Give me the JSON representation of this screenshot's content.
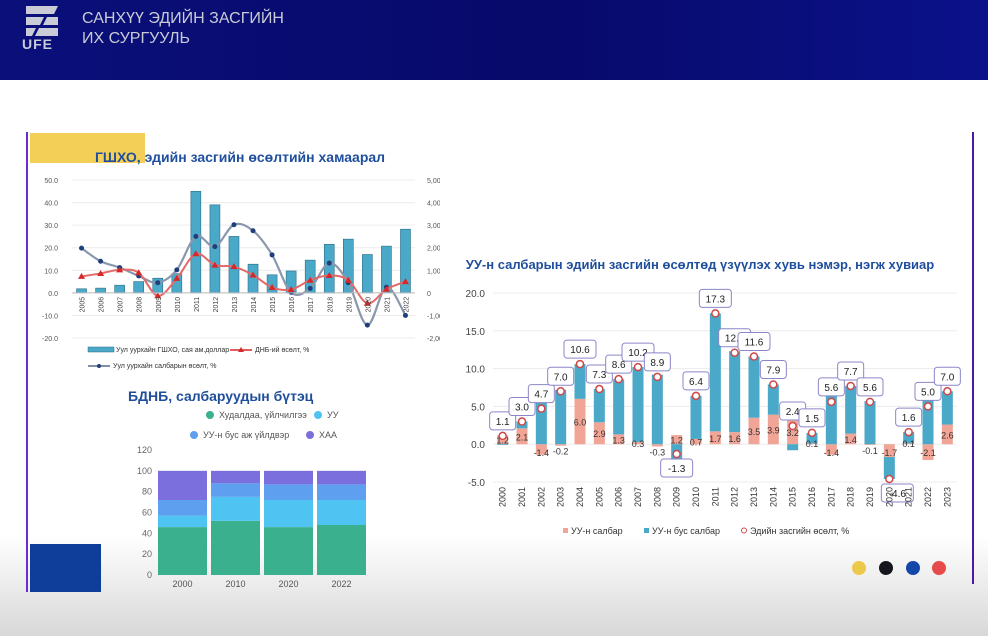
{
  "header": {
    "logo_text": "UFE",
    "university_line1": "САНХҮҮ ЭДИЙН ЗАСГИЙН",
    "university_line2": "ИХ СУРГУУЛЬ"
  },
  "colors": {
    "header_bg": "#0a0f7a",
    "title_blue": "#1f4e9c",
    "bar_teal": "#4aa8c8",
    "line_red": "#d62828",
    "line_navy": "#1f3f7a",
    "pink": "#f0a596",
    "green": "#3bb08f",
    "sky": "#4fc3f2",
    "lightblue": "#5e9ff0",
    "purple": "#7b6fde"
  },
  "footer_dots": [
    "#ecc94b",
    "#16161e",
    "#1448a8",
    "#e64a4a"
  ],
  "chart_data": [
    {
      "type": "bar",
      "title": "ГШХО, эдийн засгийн өсөлтийн хамаарал",
      "categories": [
        "2005",
        "2006",
        "2007",
        "2008",
        "2009",
        "2010",
        "2011",
        "2012",
        "2013",
        "2014",
        "2015",
        "2016",
        "2017",
        "2018",
        "2019",
        "2020",
        "2021",
        "2022"
      ],
      "ylim_left": [
        -20,
        50
      ],
      "ylim_right": [
        -2000,
        5000
      ],
      "left_ticks": [
        "50.0",
        "40.0",
        "30.0",
        "20.0",
        "10.0",
        "0.0",
        "-10.0",
        "-20.0"
      ],
      "right_ticks": [
        "5,000",
        "4,000",
        "3,000",
        "2,000",
        "1,000",
        "0",
        "-1,000",
        "-2,000"
      ],
      "series": [
        {
          "name": "Уул уурхайн ГШХО, сая ам.доллар",
          "kind": "bar",
          "axis": "right",
          "values": [
            180,
            210,
            340,
            500,
            650,
            850,
            4500,
            3900,
            2500,
            1270,
            800,
            970,
            1450,
            2150,
            2380,
            1700,
            2070,
            2820
          ]
        },
        {
          "name": "ДНБ-ий өсөлт, %",
          "kind": "line",
          "axis": "left",
          "values": [
            7.3,
            8.6,
            10.2,
            8.9,
            -1.3,
            6.4,
            17.3,
            12.3,
            11.6,
            7.9,
            2.4,
            1.5,
            5.6,
            7.7,
            5.6,
            -4.6,
            1.6,
            5.0
          ]
        },
        {
          "name": "Уул уурхайн салбарын өсөлт, %",
          "kind": "line",
          "axis": "left",
          "values": [
            19.8,
            14.0,
            11.2,
            7.5,
            4.5,
            10.2,
            25.0,
            20.5,
            30.2,
            27.5,
            16.8,
            0.2,
            2.0,
            13.2,
            4.5,
            -14.3,
            2.5,
            -10.0
          ]
        }
      ],
      "legend": "bottom"
    },
    {
      "type": "bar",
      "stacked": true,
      "title": "БДНБ, салбаруудын бүтэц",
      "categories": [
        "2000",
        "2010",
        "2020",
        "2022"
      ],
      "ylim": [
        0,
        120
      ],
      "ticks": [
        "120",
        "100",
        "80",
        "60",
        "40",
        "20",
        "0"
      ],
      "series": [
        {
          "name": "Худалдаа, үйлчилгээ",
          "values": [
            46,
            52,
            46,
            48
          ]
        },
        {
          "name": "УУ",
          "values": [
            11,
            23,
            26,
            24
          ]
        },
        {
          "name": "УУ-н бус аж үйлдвэр",
          "values": [
            15,
            13,
            15,
            15
          ]
        },
        {
          "name": "ХАА",
          "values": [
            28,
            12,
            13,
            13
          ]
        }
      ],
      "legend": "top"
    },
    {
      "type": "bar",
      "stacked": true,
      "title": "УУ-н салбарын эдийн засгийн өсөлтөд үзүүлэх хувь нэмэр, нэгж хувиар",
      "categories": [
        "2000",
        "2001",
        "2002",
        "2003",
        "2004",
        "2005",
        "2006",
        "2007",
        "2008",
        "2009",
        "2010",
        "2011",
        "2012",
        "2013",
        "2014",
        "2015",
        "2016",
        "2017",
        "2018",
        "2019",
        "2020",
        "2021",
        "2022",
        "2023"
      ],
      "ylim": [
        -5,
        20
      ],
      "ticks": [
        "20.0",
        "15.0",
        "10.0",
        "5.0",
        "0.0",
        "-5.0"
      ],
      "series": [
        {
          "name": "УУ-н салбар",
          "values": [
            1.2,
            2.1,
            -1.4,
            -0.2,
            6.0,
            2.9,
            1.3,
            0.3,
            -0.3,
            1.2,
            0.7,
            1.7,
            1.6,
            3.5,
            3.9,
            3.2,
            0.1,
            -1.4,
            1.4,
            -0.1,
            -1.7,
            0.1,
            -2.1,
            2.6
          ]
        },
        {
          "name": "УУ-н бус салбар",
          "values": [
            -0.1,
            0.9,
            6.1,
            7.2,
            4.6,
            4.4,
            7.3,
            9.9,
            9.2,
            -2.5,
            5.7,
            15.6,
            10.7,
            8.1,
            4.0,
            -0.8,
            1.4,
            7.0,
            6.3,
            5.7,
            -2.9,
            1.5,
            7.1,
            4.4
          ]
        },
        {
          "name": "Эдийн засгийн өсөлт, %",
          "kind": "marker",
          "values": [
            1.1,
            3.0,
            4.7,
            7.0,
            10.6,
            7.3,
            8.6,
            10.2,
            8.9,
            -1.3,
            6.4,
            17.3,
            12.1,
            11.6,
            7.9,
            2.4,
            1.5,
            5.6,
            7.7,
            5.6,
            -4.6,
            1.6,
            5.0,
            7.0
          ]
        }
      ],
      "mining_labels": [
        "1.2",
        "2.1",
        "-1.4",
        "-0.2",
        "6.0",
        "2.9",
        "1.3",
        "0.3",
        "-0.3",
        "1.2",
        "0.7",
        "1.7",
        "1.6",
        "3.5",
        "3.9",
        "3.2",
        "0.1",
        "-1.4",
        "1.4",
        "-0.1",
        "-1.7",
        "0.1",
        "-2.1",
        "2.6"
      ],
      "growth_labels": [
        "1.1",
        "3.0",
        "4.7",
        "7.0",
        "10.6",
        "7.3",
        "8.6",
        "10.2",
        "8.9",
        "-1.3",
        "6.4",
        "17.3",
        "12.1",
        "11.6",
        "7.9",
        "2.4",
        "1.5",
        "5.6",
        "7.7",
        "5.6",
        "-4.6",
        "1.6",
        "5.0",
        "7.0"
      ],
      "legend": "bottom"
    }
  ]
}
